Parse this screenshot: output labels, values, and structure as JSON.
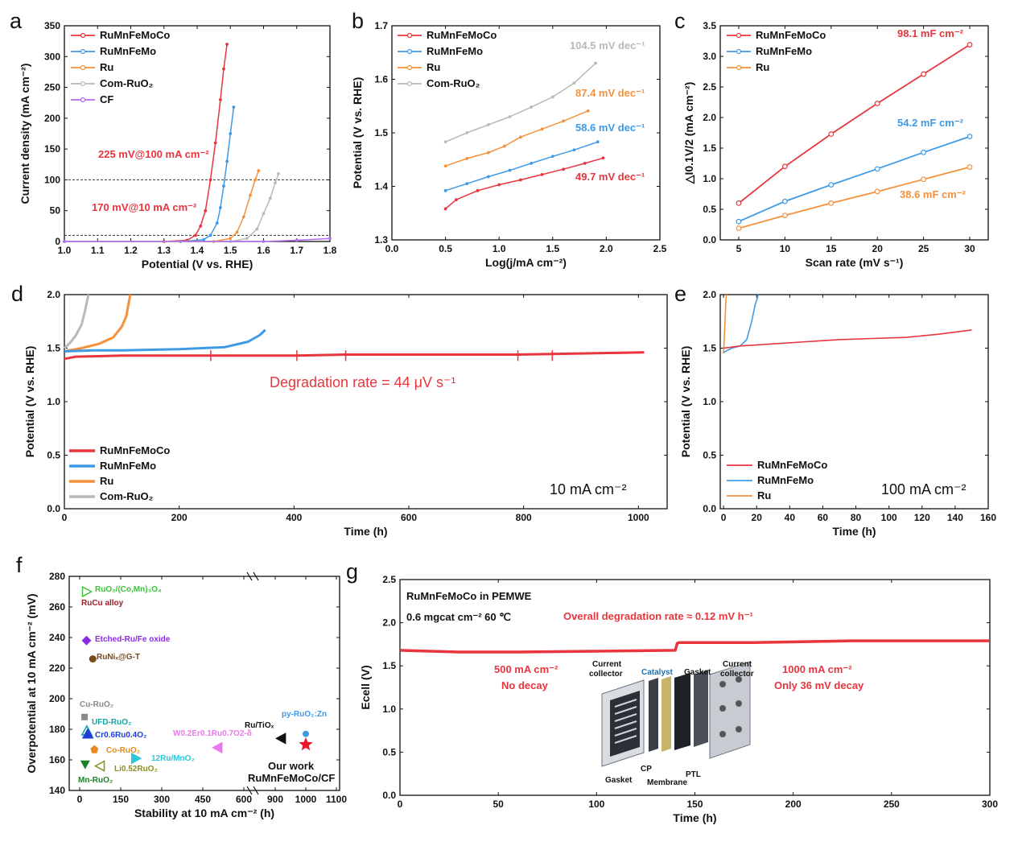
{
  "colors": {
    "red": "#e8353e",
    "blue": "#3f9ae6",
    "orange": "#f5913b",
    "gray": "#b9b9b9",
    "purple": "#b26cf0",
    "dark": "#111111"
  },
  "panels": [
    {
      "id": "a",
      "label": "a"
    },
    {
      "id": "b",
      "label": "b"
    },
    {
      "id": "c",
      "label": "c"
    },
    {
      "id": "d",
      "label": "d"
    },
    {
      "id": "e",
      "label": "e"
    },
    {
      "id": "f",
      "label": "f"
    },
    {
      "id": "g",
      "label": "g"
    }
  ],
  "chart_data": [
    {
      "panel": "a",
      "type": "line",
      "xlabel": "Potential (V vs. RHE)",
      "ylabel": "Current density (mA cm⁻²)",
      "xlim": [
        1.0,
        1.8
      ],
      "ylim": [
        0,
        350
      ],
      "xticks": [
        "1.0",
        "1.1",
        "1.2",
        "1.3",
        "1.4",
        "1.5",
        "1.6",
        "1.7",
        "1.8"
      ],
      "yticks": [
        "0",
        "50",
        "100",
        "150",
        "200",
        "250",
        "300",
        "350"
      ],
      "legend": [
        "RuMnFeMoCo",
        "RuMnFeMo",
        "Ru",
        "Com-RuO₂",
        "CF"
      ],
      "series": [
        {
          "name": "RuMnFeMoCo",
          "color": "#e8353e",
          "x": [
            1.0,
            1.3,
            1.37,
            1.395,
            1.41,
            1.425,
            1.44,
            1.455,
            1.47,
            1.48,
            1.49
          ],
          "y": [
            0,
            0,
            2,
            10,
            25,
            50,
            100,
            160,
            230,
            280,
            320
          ]
        },
        {
          "name": "RuMnFeMo",
          "color": "#3f9ae6",
          "x": [
            1.0,
            1.35,
            1.42,
            1.44,
            1.46,
            1.47,
            1.48,
            1.49,
            1.5,
            1.51
          ],
          "y": [
            0,
            0,
            3,
            10,
            30,
            55,
            90,
            130,
            175,
            218
          ]
        },
        {
          "name": "Ru",
          "color": "#f5913b",
          "x": [
            1.0,
            1.45,
            1.5,
            1.52,
            1.54,
            1.56,
            1.575,
            1.585
          ],
          "y": [
            0,
            0,
            5,
            15,
            40,
            75,
            100,
            115
          ]
        },
        {
          "name": "Com-RuO₂",
          "color": "#b9b9b9",
          "x": [
            1.0,
            1.5,
            1.55,
            1.58,
            1.6,
            1.62,
            1.635,
            1.645
          ],
          "y": [
            0,
            0,
            5,
            20,
            45,
            70,
            95,
            110
          ]
        },
        {
          "name": "CF",
          "color": "#b26cf0",
          "x": [
            1.0,
            1.6,
            1.7,
            1.8
          ],
          "y": [
            0,
            0,
            2,
            5
          ]
        }
      ],
      "reference_lines": [
        100,
        10
      ],
      "annotations": [
        "225 mV@100 mA cm⁻²",
        "170 mV@10 mA cm⁻²"
      ]
    },
    {
      "panel": "b",
      "type": "line",
      "xlabel": "Log(j/mA cm⁻²)",
      "ylabel": "Potential (V vs. RHE)",
      "xlim": [
        0.0,
        2.5
      ],
      "ylim": [
        1.3,
        1.7
      ],
      "xticks": [
        "0.0",
        "0.5",
        "1.0",
        "1.5",
        "2.0",
        "2.5"
      ],
      "yticks": [
        "1.3",
        "1.4",
        "1.5",
        "1.6",
        "1.7"
      ],
      "legend": [
        "RuMnFeMoCo",
        "RuMnFeMo",
        "Ru",
        "Com-RuO₂"
      ],
      "series": [
        {
          "name": "RuMnFeMoCo",
          "color": "#e8353e",
          "x": [
            0.5,
            0.6,
            0.8,
            1.0,
            1.2,
            1.4,
            1.6,
            1.8,
            1.97
          ],
          "y": [
            1.358,
            1.375,
            1.392,
            1.403,
            1.412,
            1.422,
            1.432,
            1.443,
            1.453
          ]
        },
        {
          "name": "RuMnFeMo",
          "color": "#3f9ae6",
          "x": [
            0.5,
            0.7,
            0.9,
            1.1,
            1.3,
            1.5,
            1.7,
            1.92
          ],
          "y": [
            1.392,
            1.405,
            1.418,
            1.43,
            1.443,
            1.456,
            1.468,
            1.483
          ]
        },
        {
          "name": "Ru",
          "color": "#f5913b",
          "x": [
            0.5,
            0.7,
            0.9,
            1.05,
            1.2,
            1.4,
            1.6,
            1.83
          ],
          "y": [
            1.438,
            1.452,
            1.463,
            1.475,
            1.492,
            1.507,
            1.522,
            1.541
          ]
        },
        {
          "name": "Com-RuO₂",
          "color": "#b9b9b9",
          "x": [
            0.5,
            0.7,
            0.9,
            1.1,
            1.3,
            1.5,
            1.7,
            1.9
          ],
          "y": [
            1.483,
            1.5,
            1.515,
            1.53,
            1.548,
            1.567,
            1.593,
            1.63
          ]
        }
      ],
      "annotations": [
        "104.5 mV dec⁻¹",
        "87.4 mV dec⁻¹",
        "58.6 mV dec⁻¹",
        "49.7 mV dec⁻¹"
      ]
    },
    {
      "panel": "c",
      "type": "line",
      "xlabel": "Scan rate (mV s⁻¹)",
      "ylabel": "△I0.1V/2 (mA cm⁻²)",
      "xlim": [
        3,
        32
      ],
      "ylim": [
        0,
        3.5
      ],
      "xticks": [
        "5",
        "10",
        "15",
        "20",
        "25",
        "30"
      ],
      "yticks": [
        "0.0",
        "0.5",
        "1.0",
        "1.5",
        "2.0",
        "2.5",
        "3.0",
        "3.5"
      ],
      "legend": [
        "RuMnFeMoCo",
        "RuMnFeMo",
        "Ru"
      ],
      "series": [
        {
          "name": "RuMnFeMoCo",
          "color": "#e8353e",
          "x": [
            5,
            10,
            15,
            20,
            25,
            30
          ],
          "y": [
            0.6,
            1.2,
            1.73,
            2.23,
            2.71,
            3.19
          ]
        },
        {
          "name": "RuMnFeMo",
          "color": "#3f9ae6",
          "x": [
            5,
            10,
            15,
            20,
            25,
            30
          ],
          "y": [
            0.3,
            0.63,
            0.9,
            1.16,
            1.43,
            1.69
          ]
        },
        {
          "name": "Ru",
          "color": "#f5913b",
          "x": [
            5,
            10,
            15,
            20,
            25,
            30
          ],
          "y": [
            0.19,
            0.4,
            0.6,
            0.79,
            0.99,
            1.19
          ]
        }
      ],
      "annotations": [
        "98.1 mF cm⁻²",
        "54.2 mF cm⁻²",
        "38.6 mF cm⁻²"
      ]
    },
    {
      "panel": "d",
      "type": "line",
      "xlabel": "Time (h)",
      "ylabel": "Potential (V vs. RHE)",
      "xlim": [
        0,
        1050
      ],
      "ylim": [
        0,
        2.0
      ],
      "xticks": [
        "0",
        "200",
        "400",
        "600",
        "800",
        "1000"
      ],
      "yticks": [
        "0.0",
        "0.5",
        "1.0",
        "1.5",
        "2.0"
      ],
      "legend": [
        "RuMnFeMoCo",
        "RuMnFeMo",
        "Ru",
        "Com-RuO₂"
      ],
      "series": [
        {
          "name": "RuMnFeMoCo",
          "color": "#e8353e",
          "x": [
            0,
            20,
            100,
            250,
            400,
            490,
            600,
            790,
            900,
            1010
          ],
          "y": [
            1.4,
            1.42,
            1.43,
            1.43,
            1.43,
            1.44,
            1.44,
            1.44,
            1.45,
            1.46
          ]
        },
        {
          "name": "RuMnFeMo",
          "color": "#3f9ae6",
          "x": [
            0,
            50,
            100,
            200,
            280,
            320,
            340,
            350
          ],
          "y": [
            1.47,
            1.48,
            1.48,
            1.49,
            1.51,
            1.56,
            1.62,
            1.67
          ]
        },
        {
          "name": "Ru",
          "color": "#f5913b",
          "x": [
            0,
            30,
            60,
            85,
            100,
            108,
            113,
            115
          ],
          "y": [
            1.47,
            1.5,
            1.54,
            1.6,
            1.7,
            1.8,
            1.95,
            2.0
          ]
        },
        {
          "name": "Com-RuO₂",
          "color": "#b9b9b9",
          "x": [
            0,
            10,
            20,
            30,
            36,
            40,
            42
          ],
          "y": [
            1.5,
            1.55,
            1.62,
            1.72,
            1.85,
            1.95,
            2.0
          ]
        }
      ],
      "annotations": [
        "Degradation rate = 44 μV s⁻¹",
        "10 mA cm⁻²"
      ]
    },
    {
      "panel": "e",
      "type": "line",
      "xlabel": "Time (h)",
      "ylabel": "Potential (V vs. RHE)",
      "xlim": [
        -2,
        160
      ],
      "ylim": [
        0,
        2.0
      ],
      "xticks": [
        "0",
        "20",
        "40",
        "60",
        "80",
        "100",
        "120",
        "140",
        "160"
      ],
      "yticks": [
        "0.0",
        "0.5",
        "1.0",
        "1.5",
        "2.0"
      ],
      "legend": [
        "RuMnFeMoCo",
        "RuMnFeMo",
        "Ru"
      ],
      "series": [
        {
          "name": "RuMnFeMoCo",
          "color": "#e8353e",
          "x": [
            0,
            10,
            30,
            50,
            70,
            90,
            110,
            130,
            150
          ],
          "y": [
            1.5,
            1.52,
            1.54,
            1.56,
            1.58,
            1.59,
            1.6,
            1.63,
            1.67
          ]
        },
        {
          "name": "RuMnFeMo",
          "color": "#3f9ae6",
          "x": [
            0,
            5,
            10,
            14,
            17,
            19,
            21
          ],
          "y": [
            1.46,
            1.5,
            1.52,
            1.58,
            1.75,
            1.9,
            2.0
          ]
        },
        {
          "name": "Ru",
          "color": "#f5913b",
          "x": [
            0,
            0.5,
            1.0,
            1.4,
            1.8
          ],
          "y": [
            1.45,
            1.6,
            1.8,
            1.95,
            2.0
          ]
        }
      ],
      "annotations": [
        "100 mA cm⁻²"
      ]
    },
    {
      "panel": "f",
      "type": "scatter",
      "xlabel": "Stability at 10 mA cm⁻² (h)",
      "ylabel": "Overpotential at 10 mA cm⁻² (mV)",
      "ylim": [
        140,
        280
      ],
      "xticks": [
        "0",
        "150",
        "300",
        "450",
        "600",
        "900",
        "1000",
        "1100"
      ],
      "yticks": [
        "140",
        "160",
        "180",
        "200",
        "220",
        "240",
        "260",
        "280"
      ],
      "points": [
        {
          "label": "RuO₂/(Co,Mn)₃O₄",
          "x": 25,
          "y": 270,
          "color": "#3ac43a"
        },
        {
          "label": "RuCu alloy",
          "x": 10,
          "y": 269,
          "color": "#9a1f2b"
        },
        {
          "label": "Etched-Ru/Fe oxide",
          "x": 25,
          "y": 238,
          "color": "#8a2be2"
        },
        {
          "label": "RuNiₓ@G-T",
          "x": 48,
          "y": 226,
          "color": "#7a4a1f"
        },
        {
          "label": "Cu-RuO₂",
          "x": 18,
          "y": 188,
          "color": "#8a8a8a"
        },
        {
          "label": "UFD-RuO₂",
          "x": 26,
          "y": 179,
          "color": "#12a5a5"
        },
        {
          "label": "Cr0.6Ru0.4O₂",
          "x": 30,
          "y": 177,
          "color": "#1f3fd6"
        },
        {
          "label": "Co-RuO₂",
          "x": 54,
          "y": 167,
          "color": "#e88a1f"
        },
        {
          "label": "12Ru/MnO₂",
          "x": 205,
          "y": 161,
          "color": "#2fc6d9"
        },
        {
          "label": "Li0.52RuO₂",
          "x": 75,
          "y": 156,
          "color": "#8d8d1f"
        },
        {
          "label": "Mn-RuO₂",
          "x": 20,
          "y": 157,
          "color": "#1e7f2a"
        },
        {
          "label": "W0.2Er0.1Ru0.7O2-δ",
          "x": 505,
          "y": 168,
          "color": "#e879e8"
        },
        {
          "label": "Ru/TiOₓ",
          "x": 920,
          "y": 174,
          "color": "#111111"
        },
        {
          "label": "py-RuO₂:Zn",
          "x": 1000,
          "y": 177,
          "color": "#3f9ae6"
        },
        {
          "label": "Our work RuMnFeMoCo/CF",
          "x": 1000,
          "y": 170,
          "color": "#e8192b"
        }
      ],
      "annotations": [
        "Our work",
        "RuMnFeMoCo/CF"
      ]
    },
    {
      "panel": "g",
      "type": "line",
      "xlabel": "Time (h)",
      "ylabel": "Ecell (V)",
      "xlim": [
        0,
        300
      ],
      "ylim": [
        0,
        2.5
      ],
      "xticks": [
        "0",
        "50",
        "100",
        "150",
        "200",
        "250",
        "300"
      ],
      "yticks": [
        "0.0",
        "0.5",
        "1.0",
        "1.5",
        "2.0",
        "2.5"
      ],
      "series": [
        {
          "name": "RuMnFeMoCo in PEMWE",
          "color": "#e8353e",
          "x": [
            0,
            30,
            60,
            100,
            140,
            141,
            142,
            180,
            230,
            260,
            300
          ],
          "y": [
            1.68,
            1.66,
            1.66,
            1.67,
            1.68,
            1.76,
            1.77,
            1.77,
            1.79,
            1.79,
            1.79
          ]
        }
      ],
      "annotations": [
        "RuMnFeMoCo in PEMWE",
        "0.6 mgcat cm⁻² 60 ℃",
        "Overall degradation rate ≈ 0.12 mV h⁻¹",
        "500 mA cm⁻²",
        "No decay",
        "1000 mA cm⁻²",
        "Only 36 mV decay"
      ],
      "inset_labels": [
        "Current collector",
        "Catalyst",
        "Gasket",
        "Current collector",
        "Gasket",
        "CP",
        "Membrane",
        "PTL"
      ]
    }
  ]
}
